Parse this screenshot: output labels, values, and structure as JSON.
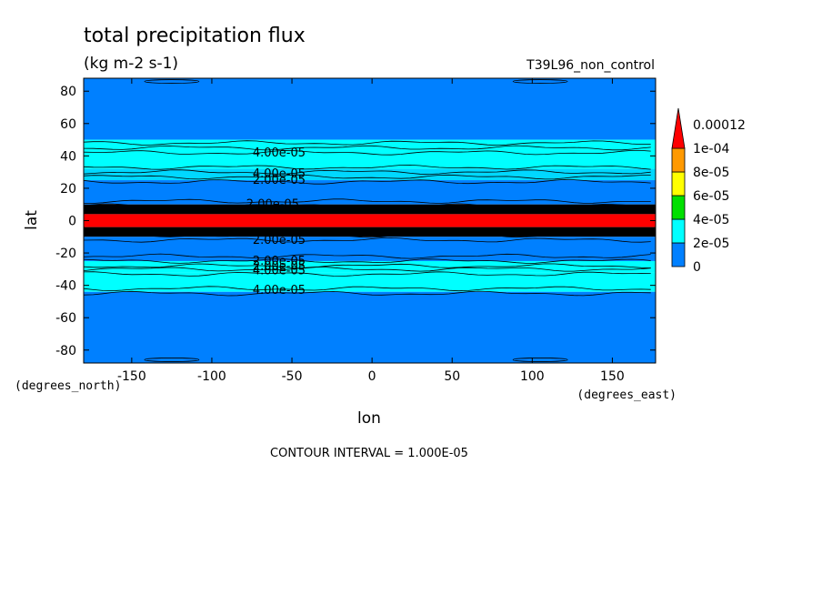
{
  "chart_data": {
    "type": "heatmap",
    "title": "total precipitation flux",
    "units": "(kg m-2 s-1)",
    "dataset": "T39L96_non_control",
    "xlabel": "lon",
    "ylabel": "lat",
    "x_units": "(degrees_east)",
    "y_units": "(degrees_north)",
    "xlim": [
      -180,
      177
    ],
    "ylim": [
      -88,
      88
    ],
    "x_ticks": [
      -150,
      -100,
      -50,
      0,
      50,
      100,
      150
    ],
    "x_tick_labels": [
      "-150",
      "-100",
      "-50",
      "0",
      "50",
      "100",
      "150"
    ],
    "y_ticks": [
      -80,
      -60,
      -40,
      -20,
      0,
      20,
      40,
      60,
      80
    ],
    "y_tick_labels": [
      "-80",
      "-60",
      "-40",
      "-20",
      "0",
      "20",
      "40",
      "60",
      "80"
    ],
    "contour_interval": "CONTOUR INTERVAL = 1.000E-05",
    "colorbar": {
      "levels": [
        0,
        2e-05,
        4e-05,
        6e-05,
        8e-05,
        0.0001,
        0.00012
      ],
      "labels": [
        "0",
        "2e-05",
        "4e-05",
        "6e-05",
        "8e-05",
        "1e-04",
        "0.00012"
      ],
      "colors": [
        "#0080ff",
        "#00ffff",
        "#00e000",
        "#ffff00",
        "#ff9900",
        "#ff0000"
      ],
      "extend": "max"
    },
    "zonal_bands": [
      {
        "lat_from": 50,
        "lat_to": 88,
        "level": "0-2e-05"
      },
      {
        "lat_from": 32,
        "lat_to": 50,
        "level": "2e-05-4e-05"
      },
      {
        "lat_from": 25,
        "lat_to": 32,
        "level": "4e-05-6e-05"
      },
      {
        "lat_from": 10,
        "lat_to": 25,
        "level": "0-2e-05"
      },
      {
        "lat_from": 4,
        "lat_to": 10,
        "level": "6e-05-0.00012"
      },
      {
        "lat_from": -4,
        "lat_to": 4,
        "level": ">0.00012"
      },
      {
        "lat_from": -10,
        "lat_to": -4,
        "level": "6e-05-0.00012"
      },
      {
        "lat_from": -25,
        "lat_to": -10,
        "level": "0-2e-05"
      },
      {
        "lat_from": -32,
        "lat_to": -25,
        "level": "2e-05-4e-05"
      },
      {
        "lat_from": -44,
        "lat_to": -32,
        "level": "2e-05-4e-05"
      },
      {
        "lat_from": -88,
        "lat_to": -44,
        "level": "0-2e-05"
      }
    ],
    "contour_labels": [
      {
        "text": "4.00e-05",
        "lon": -58,
        "lat": 42
      },
      {
        "text": "4.00e-05",
        "lon": -58,
        "lat": 29
      },
      {
        "text": "2.00e-05",
        "lon": -58,
        "lat": 25
      },
      {
        "text": "2.00e-05",
        "lon": -62,
        "lat": 10
      },
      {
        "text": "2.00e-05",
        "lon": -58,
        "lat": -12
      },
      {
        "text": "2.00e-05",
        "lon": -58,
        "lat": -25
      },
      {
        "text": "2.00e-05",
        "lon": -58,
        "lat": -28
      },
      {
        "text": "4.00e-05",
        "lon": -58,
        "lat": -31
      },
      {
        "text": "4.00e-05",
        "lon": -58,
        "lat": -43
      }
    ]
  }
}
